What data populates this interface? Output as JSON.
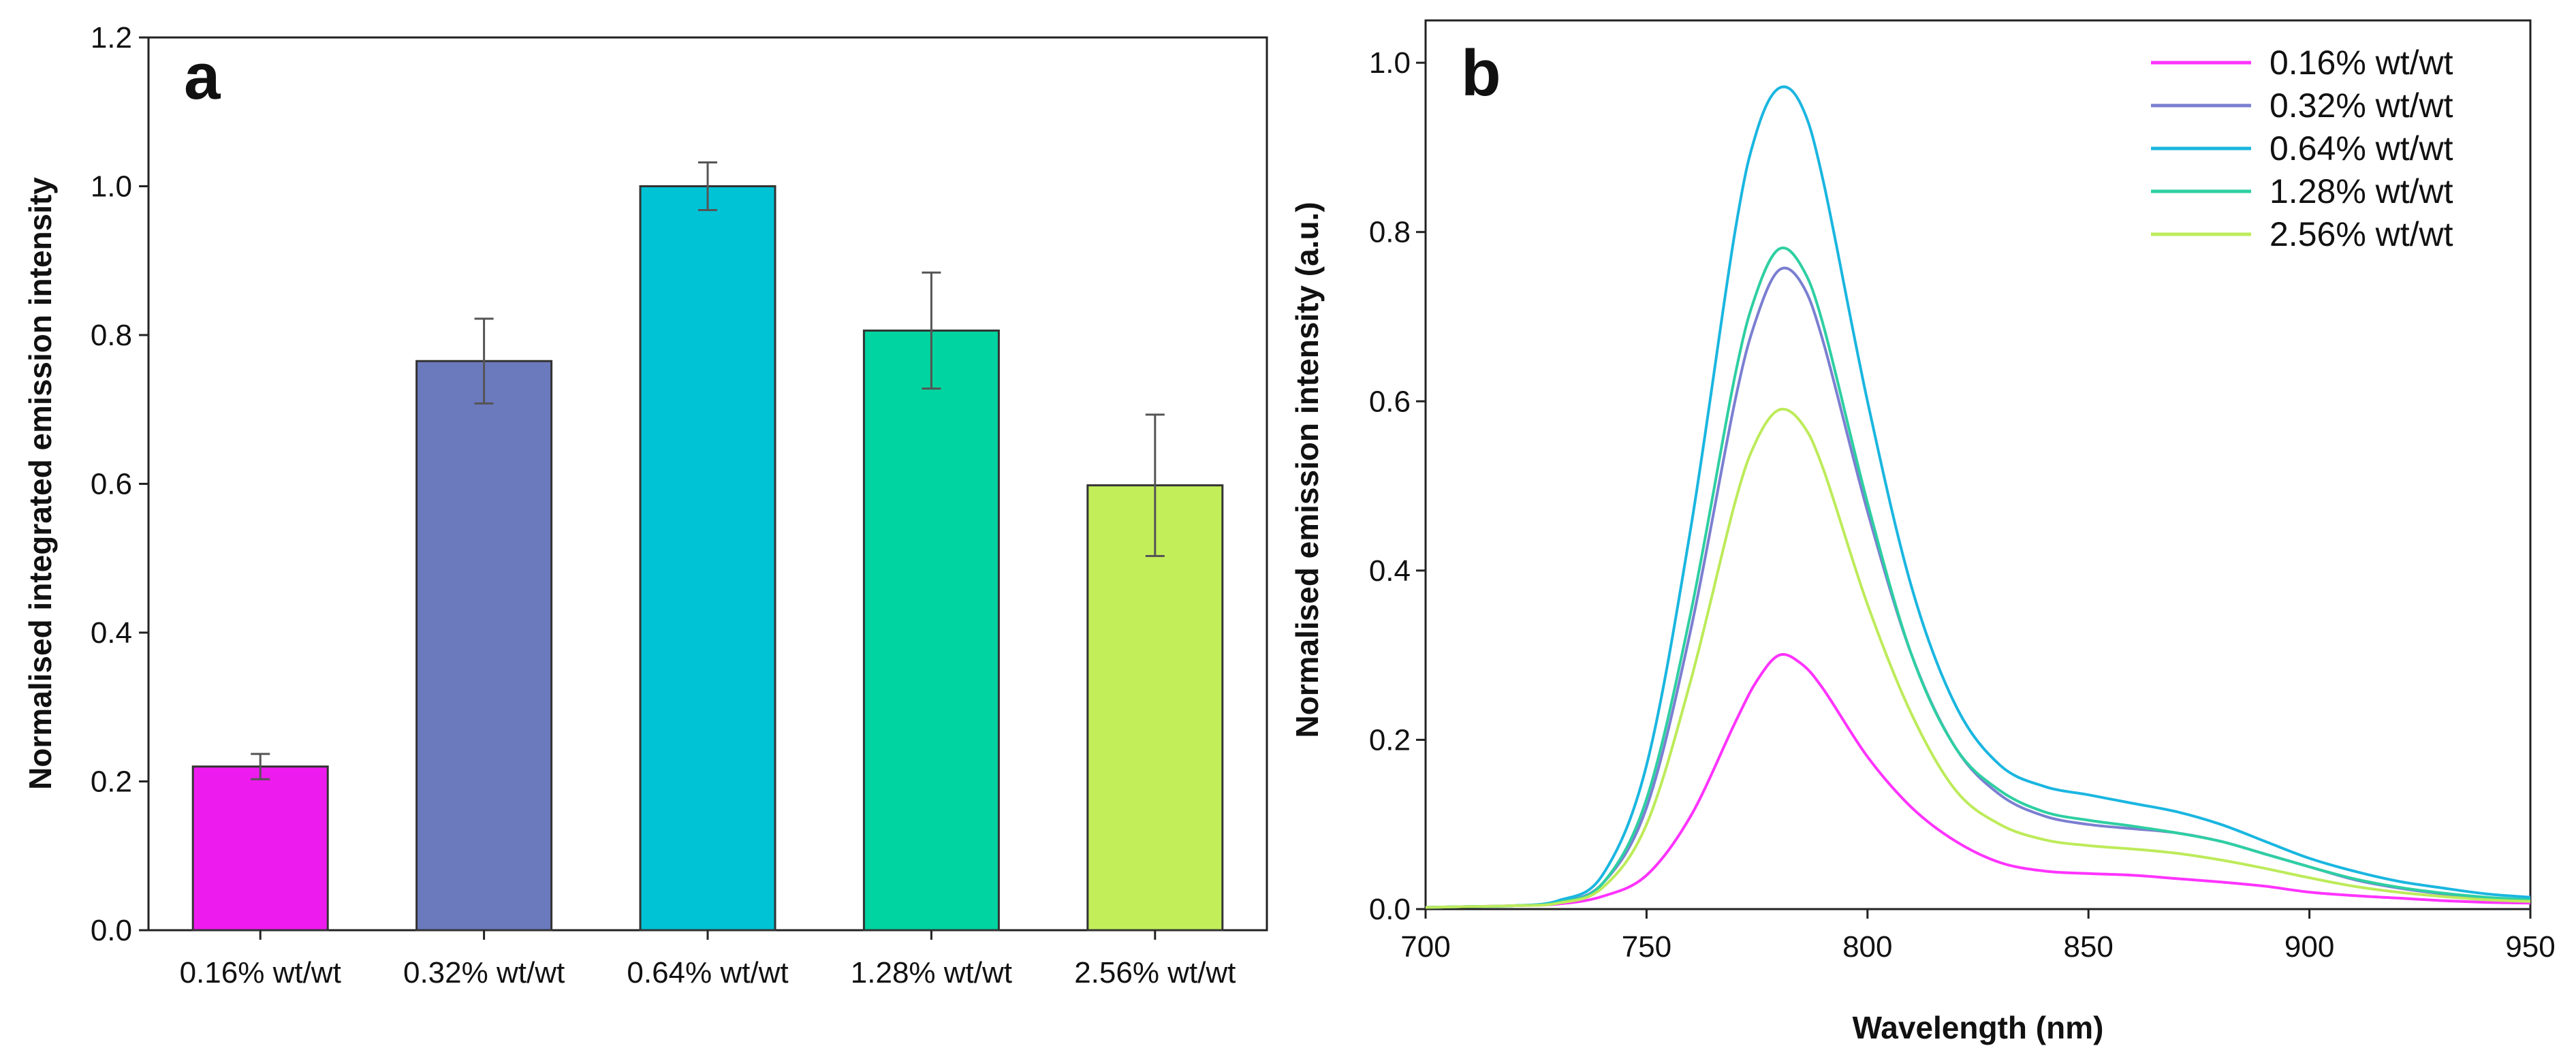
{
  "chart_data": [
    {
      "type": "bar",
      "panel_label": "a",
      "title": "",
      "xlabel": "",
      "ylabel": "Normalised integrated emission intensity",
      "ylim": [
        0,
        1.2
      ],
      "yticks": [
        "0.0",
        "0.2",
        "0.4",
        "0.6",
        "0.8",
        "1.0",
        "1.2"
      ],
      "categories": [
        "0.16% wt/wt",
        "0.32% wt/wt",
        "0.64% wt/wt",
        "1.28% wt/wt",
        "2.56% wt/wt"
      ],
      "values": [
        0.22,
        0.765,
        1.0,
        0.806,
        0.598
      ],
      "errors": [
        0.017,
        0.057,
        0.032,
        0.078,
        0.095
      ],
      "colors": [
        "#ee1bee",
        "#6b79bd",
        "#00c3d6",
        "#00d4a0",
        "#c2ee5a"
      ],
      "grid": false
    },
    {
      "type": "line",
      "panel_label": "b",
      "title": "",
      "xlabel": "Wavelength (nm)",
      "ylabel": "Normalised emission intensity (a.u.)",
      "xlim": [
        700,
        950
      ],
      "ylim": [
        0,
        1.05
      ],
      "xticks": [
        "700",
        "750",
        "800",
        "850",
        "900",
        "950"
      ],
      "yticks": [
        "0.0",
        "0.2",
        "0.4",
        "0.6",
        "0.8",
        "1.0"
      ],
      "legend_position": "top-right",
      "grid": false,
      "x": [
        700,
        710,
        720,
        730,
        740,
        750,
        760,
        770,
        775,
        780,
        785,
        790,
        800,
        810,
        820,
        830,
        840,
        850,
        860,
        870,
        880,
        890,
        900,
        910,
        920,
        930,
        940,
        950
      ],
      "series": [
        {
          "name": "0.16% wt/wt",
          "color": "#ff33ff",
          "values": [
            0.002,
            0.003,
            0.004,
            0.006,
            0.015,
            0.04,
            0.11,
            0.22,
            0.27,
            0.3,
            0.29,
            0.26,
            0.18,
            0.12,
            0.08,
            0.055,
            0.045,
            0.042,
            0.04,
            0.036,
            0.032,
            0.027,
            0.02,
            0.016,
            0.013,
            0.01,
            0.008,
            0.007
          ]
        },
        {
          "name": "0.32% wt/wt",
          "color": "#7b7fd1",
          "values": [
            0.002,
            0.003,
            0.004,
            0.008,
            0.03,
            0.12,
            0.33,
            0.6,
            0.7,
            0.755,
            0.74,
            0.67,
            0.47,
            0.3,
            0.19,
            0.135,
            0.11,
            0.1,
            0.095,
            0.09,
            0.08,
            0.065,
            0.05,
            0.035,
            0.025,
            0.018,
            0.013,
            0.01
          ]
        },
        {
          "name": "0.64% wt/wt",
          "color": "#1ab6e0",
          "values": [
            0.002,
            0.003,
            0.004,
            0.01,
            0.04,
            0.17,
            0.45,
            0.8,
            0.92,
            0.97,
            0.95,
            0.86,
            0.6,
            0.38,
            0.24,
            0.17,
            0.145,
            0.135,
            0.125,
            0.115,
            0.1,
            0.08,
            0.06,
            0.045,
            0.033,
            0.025,
            0.018,
            0.014
          ]
        },
        {
          "name": "1.28% wt/wt",
          "color": "#2ecfa2",
          "values": [
            0.002,
            0.003,
            0.004,
            0.008,
            0.03,
            0.13,
            0.35,
            0.63,
            0.73,
            0.78,
            0.76,
            0.69,
            0.48,
            0.3,
            0.19,
            0.14,
            0.115,
            0.105,
            0.098,
            0.09,
            0.08,
            0.065,
            0.05,
            0.036,
            0.026,
            0.019,
            0.014,
            0.011
          ]
        },
        {
          "name": "2.56% wt/wt",
          "color": "#bdeb5a",
          "values": [
            0.002,
            0.003,
            0.004,
            0.007,
            0.025,
            0.1,
            0.27,
            0.48,
            0.555,
            0.59,
            0.575,
            0.52,
            0.36,
            0.23,
            0.14,
            0.1,
            0.082,
            0.075,
            0.071,
            0.066,
            0.058,
            0.048,
            0.037,
            0.027,
            0.02,
            0.015,
            0.011,
            0.009
          ]
        }
      ]
    }
  ]
}
